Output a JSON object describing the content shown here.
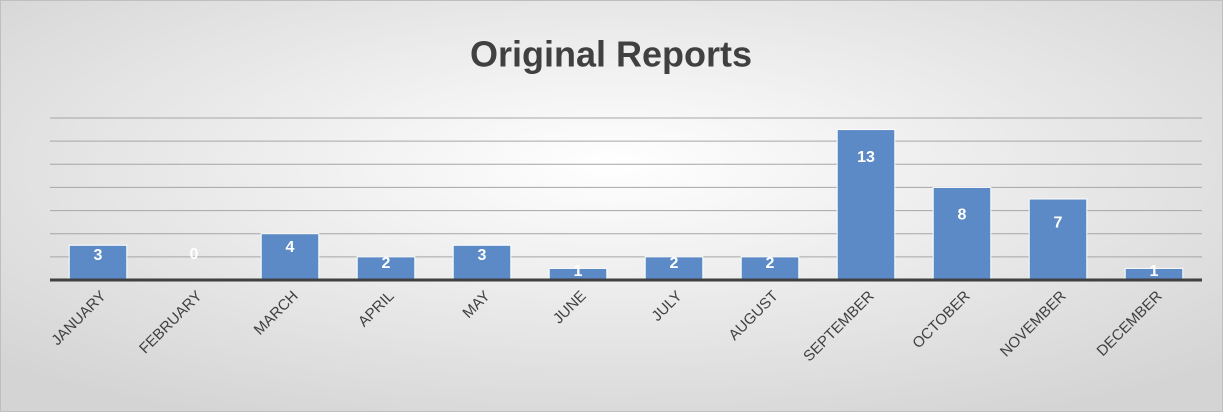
{
  "chart_data": {
    "type": "bar",
    "title": "Original Reports",
    "categories": [
      "JANUARY",
      "FEBRUARY",
      "MARCH",
      "APRIL",
      "MAY",
      "JUNE",
      "JULY",
      "AUGUST",
      "SEPTEMBER",
      "OCTOBER",
      "NOVEMBER",
      "DECEMBER"
    ],
    "values": [
      3,
      0,
      4,
      2,
      3,
      1,
      2,
      2,
      13,
      8,
      7,
      1
    ],
    "color": "#5b8ac6",
    "ylim": [
      0,
      14
    ],
    "yticks": [
      0,
      2,
      4,
      6,
      8,
      10,
      12,
      14
    ],
    "grid": true
  }
}
